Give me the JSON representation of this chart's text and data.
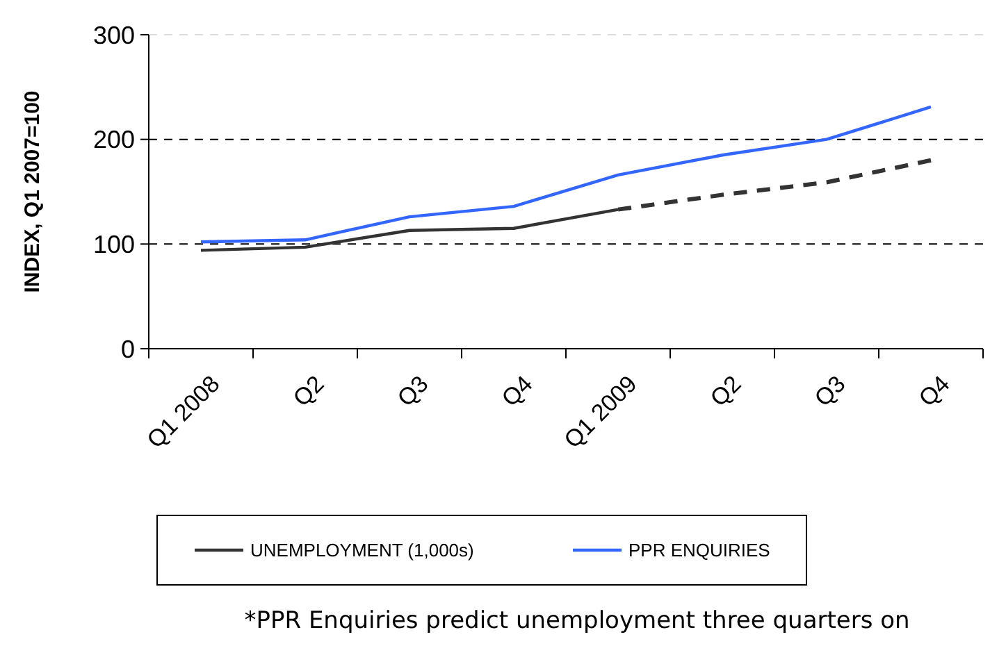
{
  "chart_data": {
    "type": "line",
    "ylabel": "INDEX, Q1 2007=100",
    "categories": [
      "Q1 2008",
      "Q2",
      "Q3",
      "Q4",
      "Q1 2009",
      "Q2",
      "Q3",
      "Q4"
    ],
    "series": [
      {
        "name": "UNEMPLOYMENT (1,000s)",
        "color": "#333333",
        "values": [
          94,
          97,
          113,
          115,
          133,
          null,
          null,
          null
        ]
      },
      {
        "color": "#333333",
        "line_style": "dotted",
        "values": [
          null,
          null,
          null,
          null,
          133,
          147,
          159,
          180
        ]
      },
      {
        "name": "PPR ENQUIRIES",
        "color": "#3366ff",
        "values": [
          102,
          104,
          126,
          136,
          166,
          185,
          200,
          231
        ]
      }
    ],
    "ylim": [
      0,
      300
    ],
    "yticks": [
      0,
      100,
      200,
      300
    ],
    "grid": "y",
    "legend": "bottom",
    "line_style": "solid",
    "marker": "none",
    "annotations": [
      "*PPR Enquiries predict unemployment three quarters on"
    ]
  }
}
